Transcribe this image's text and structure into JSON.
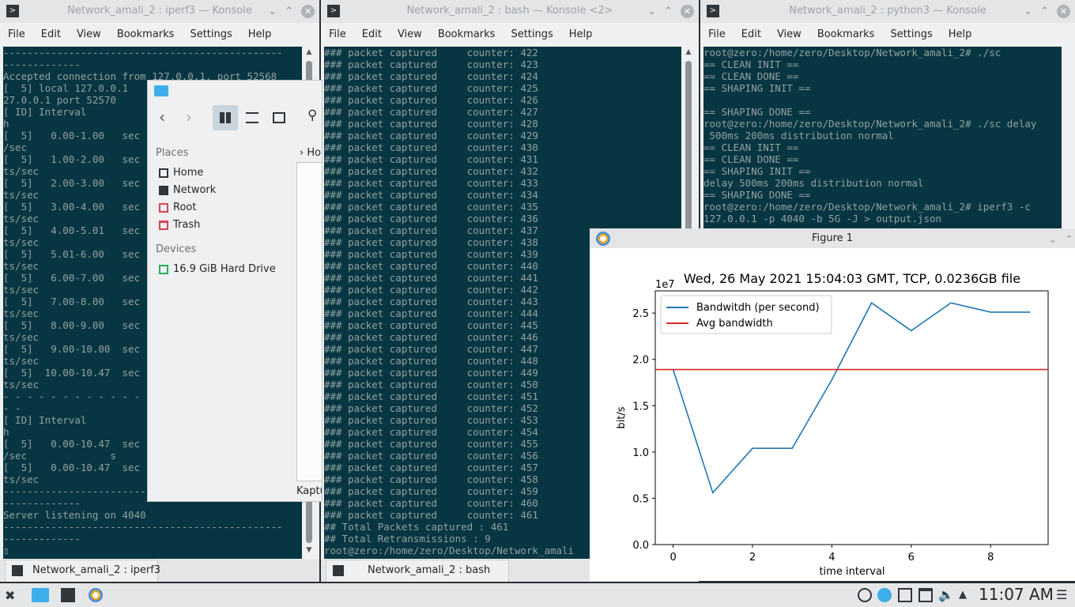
{
  "menu": [
    "File",
    "Edit",
    "View",
    "Bookmarks",
    "Settings",
    "Help"
  ],
  "win1": {
    "title": "Network_amali_2 : iperf3 — Konsole",
    "tab_label": "Network_amali_2 : iperf3",
    "lines": [
      "-----------------------------------------------",
      "-------------",
      "Accepted connection from 127.0.0.1, port 52568",
      "[  5] local 127.0.0.1 ",
      "27.0.0.1 port 52570",
      "[ ID] Interval",
      "h",
      "[  5]   0.00-1.00   sec",
      "/sec",
      "[  5]   1.00-2.00   sec",
      "ts/sec",
      "[  5]   2.00-3.00   sec",
      "ts/sec",
      "[  5]   3.00-4.00   sec",
      "ts/sec",
      "[  5]   4.00-5.01   sec",
      "ts/sec",
      "[  5]   5.01-6.00   sec",
      "ts/sec",
      "[  5]   6.00-7.00   sec",
      "ts/sec",
      "[  5]   7.00-8.00   sec",
      "ts/sec",
      "[  5]   8.00-9.00   sec",
      "ts/sec",
      "[  5]   9.00-10.00  sec",
      "ts/sec",
      "[  5]  10.00-10.47  sec",
      "ts/sec",
      "- - - - - - - - - - - -",
      "- -",
      "[ ID] Interval",
      "h",
      "[  5]   0.00-10.47  sec",
      "/sec              s",
      "[  5]   0.00-10.47  sec",
      "ts/sec",
      "-----------------------------------------------",
      "-------------",
      "Server listening on 4040",
      "-----------------------------------------------",
      "-------------",
      "▯"
    ]
  },
  "win2": {
    "title": "Network_amali_2 : bash — Konsole <2>",
    "tab_label": "Network_amali_2 : bash",
    "lines": [
      "### packet captured     counter: 422",
      "### packet captured     counter: 423",
      "### packet captured     counter: 424",
      "### packet captured     counter: 425",
      "### packet captured     counter: 426",
      "### packet captured     counter: 427",
      "### packet captured     counter: 428",
      "### packet captured     counter: 429",
      "### packet captured     counter: 430",
      "### packet captured     counter: 431",
      "### packet captured     counter: 432",
      "### packet captured     counter: 433",
      "### packet captured     counter: 434",
      "### packet captured     counter: 435",
      "### packet captured     counter: 436",
      "### packet captured     counter: 437",
      "### packet captured     counter: 438",
      "### packet captured     counter: 439",
      "### packet captured     counter: 440",
      "### packet captured     counter: 441",
      "### packet captured     counter: 442",
      "### packet captured     counter: 443",
      "### packet captured     counter: 444",
      "### packet captured     counter: 445",
      "### packet captured     counter: 446",
      "### packet captured     counter: 447",
      "### packet captured     counter: 448",
      "### packet captured     counter: 449",
      "### packet captured     counter: 450",
      "### packet captured     counter: 451",
      "### packet captured     counter: 452",
      "### packet captured     counter: 453",
      "### packet captured     counter: 454",
      "### packet captured     counter: 455",
      "### packet captured     counter: 456",
      "### packet captured     counter: 457",
      "### packet captured     counter: 458",
      "### packet captured     counter: 459",
      "### packet captured     counter: 460",
      "### packet captured     counter: 461",
      "## Total Packets captured : 461",
      "## Total Retransmissions : 9",
      "root@zero:/home/zero/Desktop/Network_amali"
    ]
  },
  "win3": {
    "title": "Network_amali_2 : python3 — Konsole",
    "lines": [
      "root@zero:/home/zero/Desktop/Network_amali_2# ./sc",
      "== CLEAN INIT ==",
      "== CLEAN DONE ==",
      "== SHAPING INIT ==",
      "",
      "== SHAPING DONE ==",
      "root@zero:/home/zero/Desktop/Network_amali_2# ./sc delay",
      " 500ms 200ms distribution normal",
      "== CLEAN INIT ==",
      "== CLEAN DONE ==",
      "== SHAPING INIT ==",
      "delay 500ms 200ms distribution normal",
      "== SHAPING DONE ==",
      "root@zero:/home/zero/Desktop/Network_amali_2# iperf3 -c",
      "127.0.0.1 -p 4040 -b 5G -J > output.json"
    ]
  },
  "filemanager": {
    "places_label": "Places",
    "devices_label": "Devices",
    "places": [
      "Home",
      "Network",
      "Root",
      "Trash"
    ],
    "devices": [
      "16.9 GiB Hard Drive"
    ],
    "crumb": "Ho",
    "status": "Kaptu"
  },
  "figure": {
    "window_title": "Figure 1"
  },
  "chart_data": {
    "type": "line",
    "title": "Wed, 26 May 2021 15:04:03 GMT, TCP, 0.0236GB file",
    "xlabel": "time interval",
    "ylabel": "bit/s",
    "scale_label": "1e7",
    "x": [
      0,
      1,
      2,
      3,
      4,
      5,
      6,
      7,
      8,
      9
    ],
    "series": [
      {
        "name": "Bandwitdh (per second)",
        "color": "#1f77b4",
        "values": [
          1.89,
          0.56,
          1.04,
          1.04,
          1.78,
          2.61,
          2.31,
          2.61,
          2.51,
          2.51
        ]
      },
      {
        "name": "Avg bandwidth",
        "color": "#d62728",
        "values": [
          1.89,
          1.89,
          1.89,
          1.89,
          1.89,
          1.89,
          1.89,
          1.89,
          1.89,
          1.89
        ]
      }
    ],
    "xticks": [
      0,
      2,
      4,
      6,
      8
    ],
    "yticks": [
      0.0,
      0.5,
      1.0,
      1.5,
      2.0,
      2.5
    ],
    "xlim": [
      -0.45,
      9.45
    ],
    "ylim": [
      0,
      2.74
    ],
    "legend": "top-left"
  },
  "taskbar": {
    "clock": "11:07 AM"
  }
}
